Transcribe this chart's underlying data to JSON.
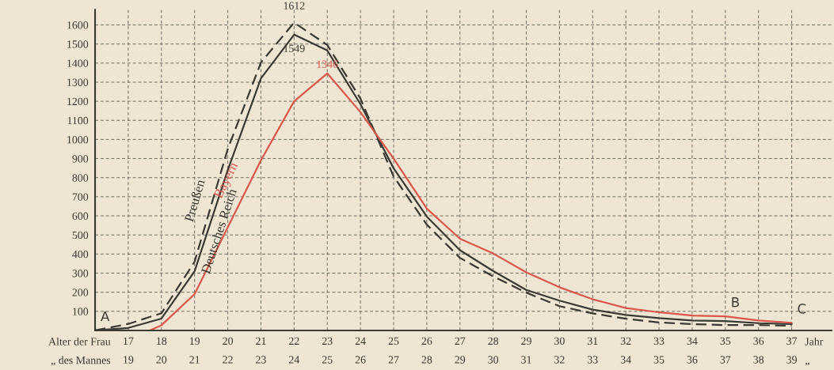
{
  "chart_data": {
    "type": "line",
    "x": [
      16,
      17,
      18,
      19,
      20,
      21,
      22,
      23,
      24,
      25,
      26,
      27,
      28,
      29,
      30,
      31,
      32,
      33,
      34,
      35,
      36,
      37
    ],
    "series": [
      {
        "name": "Preußen",
        "color": "#3a3a35",
        "line_style": "dashed",
        "values": [
          0,
          34,
          90,
          360,
          950,
          1403,
          1612,
          1495,
          1214,
          806,
          554,
          380,
          283,
          198,
          127,
          89,
          61,
          42,
          33,
          28,
          28,
          24
        ]
      },
      {
        "name": "Deutsches Reich",
        "color": "#3a3a35",
        "line_style": "solid",
        "values": [
          0,
          13,
          62,
          310,
          840,
          1320,
          1549,
          1466,
          1185,
          849,
          596,
          420,
          311,
          212,
          156,
          109,
          81,
          64,
          52,
          49,
          38,
          33
        ]
      },
      {
        "name": "Bayern",
        "color": "#d9584a",
        "line_style": "solid",
        "x": [
          17.65,
          18,
          19,
          20,
          21,
          22,
          23,
          24,
          25,
          26,
          27,
          28,
          29,
          30,
          31,
          32,
          33,
          34,
          35,
          36,
          37
        ],
        "values": [
          0,
          27,
          190,
          540,
          891,
          1200,
          1346,
          1143,
          900,
          638,
          480,
          403,
          304,
          226,
          163,
          117,
          95,
          78,
          74,
          52,
          40
        ]
      }
    ],
    "xlim": [
      16,
      38.2
    ],
    "ylim": [
      0,
      1680
    ],
    "xticks": [
      17,
      18,
      19,
      20,
      21,
      22,
      23,
      24,
      25,
      26,
      27,
      28,
      29,
      30,
      31,
      32,
      33,
      34,
      35,
      36,
      37
    ],
    "x2lim": [
      18,
      40.2
    ],
    "x2ticks": [
      19,
      20,
      21,
      22,
      23,
      24,
      25,
      26,
      27,
      28,
      29,
      30,
      31,
      32,
      33,
      34,
      35,
      36,
      37,
      38,
      39
    ],
    "yticks": [
      100,
      200,
      300,
      400,
      500,
      600,
      700,
      800,
      900,
      1000,
      1100,
      1200,
      1300,
      1400,
      1500,
      1600
    ],
    "grid": true,
    "legend": false,
    "marker": "none",
    "annotations": [
      {
        "text": "1612",
        "x": 22,
        "y": 1612
      },
      {
        "text": "1549",
        "x": 22,
        "y": 1549
      },
      {
        "text": "1346",
        "x": 23,
        "y": 1346
      },
      {
        "text": "A",
        "x": 16,
        "y": 0
      },
      {
        "text": "B",
        "x": 35,
        "y": 74
      },
      {
        "text": "C",
        "x": 37,
        "y": 40
      },
      "Alter der Frau",
      "„ des Mannes",
      "Jahr",
      "„"
    ]
  }
}
